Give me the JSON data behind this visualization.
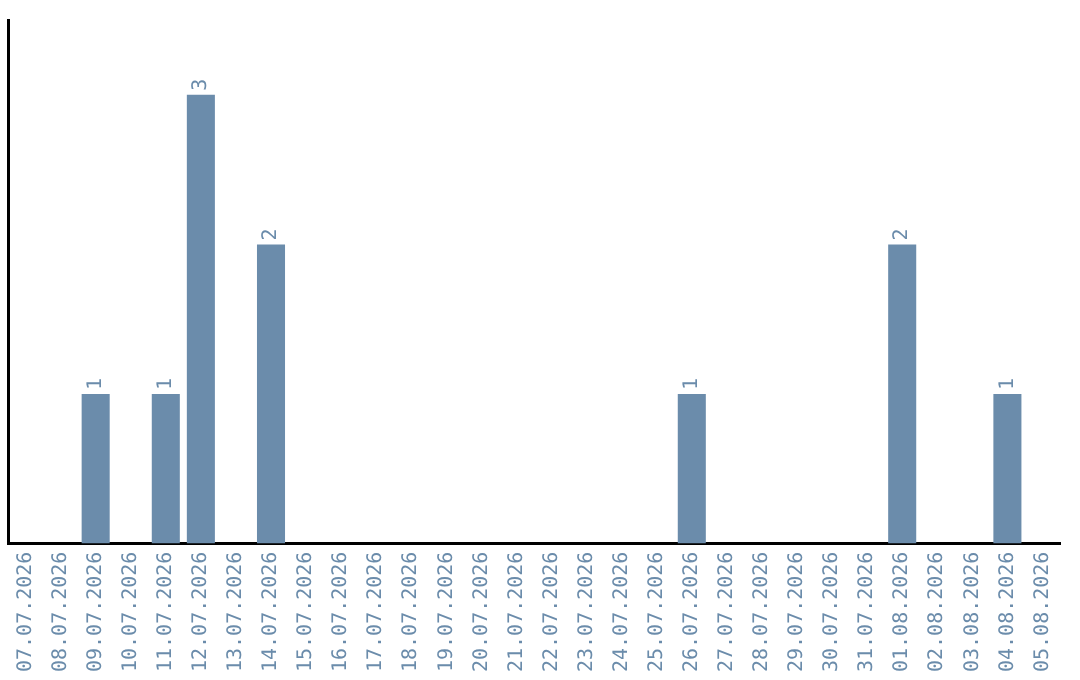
{
  "chart_data": {
    "type": "bar",
    "categories": [
      "07.07.2026",
      "08.07.2026",
      "09.07.2026",
      "10.07.2026",
      "11.07.2026",
      "12.07.2026",
      "13.07.2026",
      "14.07.2026",
      "15.07.2026",
      "16.07.2026",
      "17.07.2026",
      "18.07.2026",
      "19.07.2026",
      "20.07.2026",
      "21.07.2026",
      "22.07.2026",
      "23.07.2026",
      "24.07.2026",
      "25.07.2026",
      "26.07.2026",
      "27.07.2026",
      "28.07.2026",
      "29.07.2026",
      "30.07.2026",
      "31.07.2026",
      "01.08.2026",
      "02.08.2026",
      "03.08.2026",
      "04.08.2026",
      "05.08.2026"
    ],
    "values": [
      null,
      null,
      1,
      null,
      1,
      3,
      null,
      2,
      null,
      null,
      null,
      null,
      null,
      null,
      null,
      null,
      null,
      null,
      null,
      1,
      null,
      null,
      null,
      null,
      null,
      2,
      null,
      null,
      1,
      null
    ],
    "color": "#6b8cab",
    "data_labels": true,
    "grid": false,
    "legend": false
  }
}
